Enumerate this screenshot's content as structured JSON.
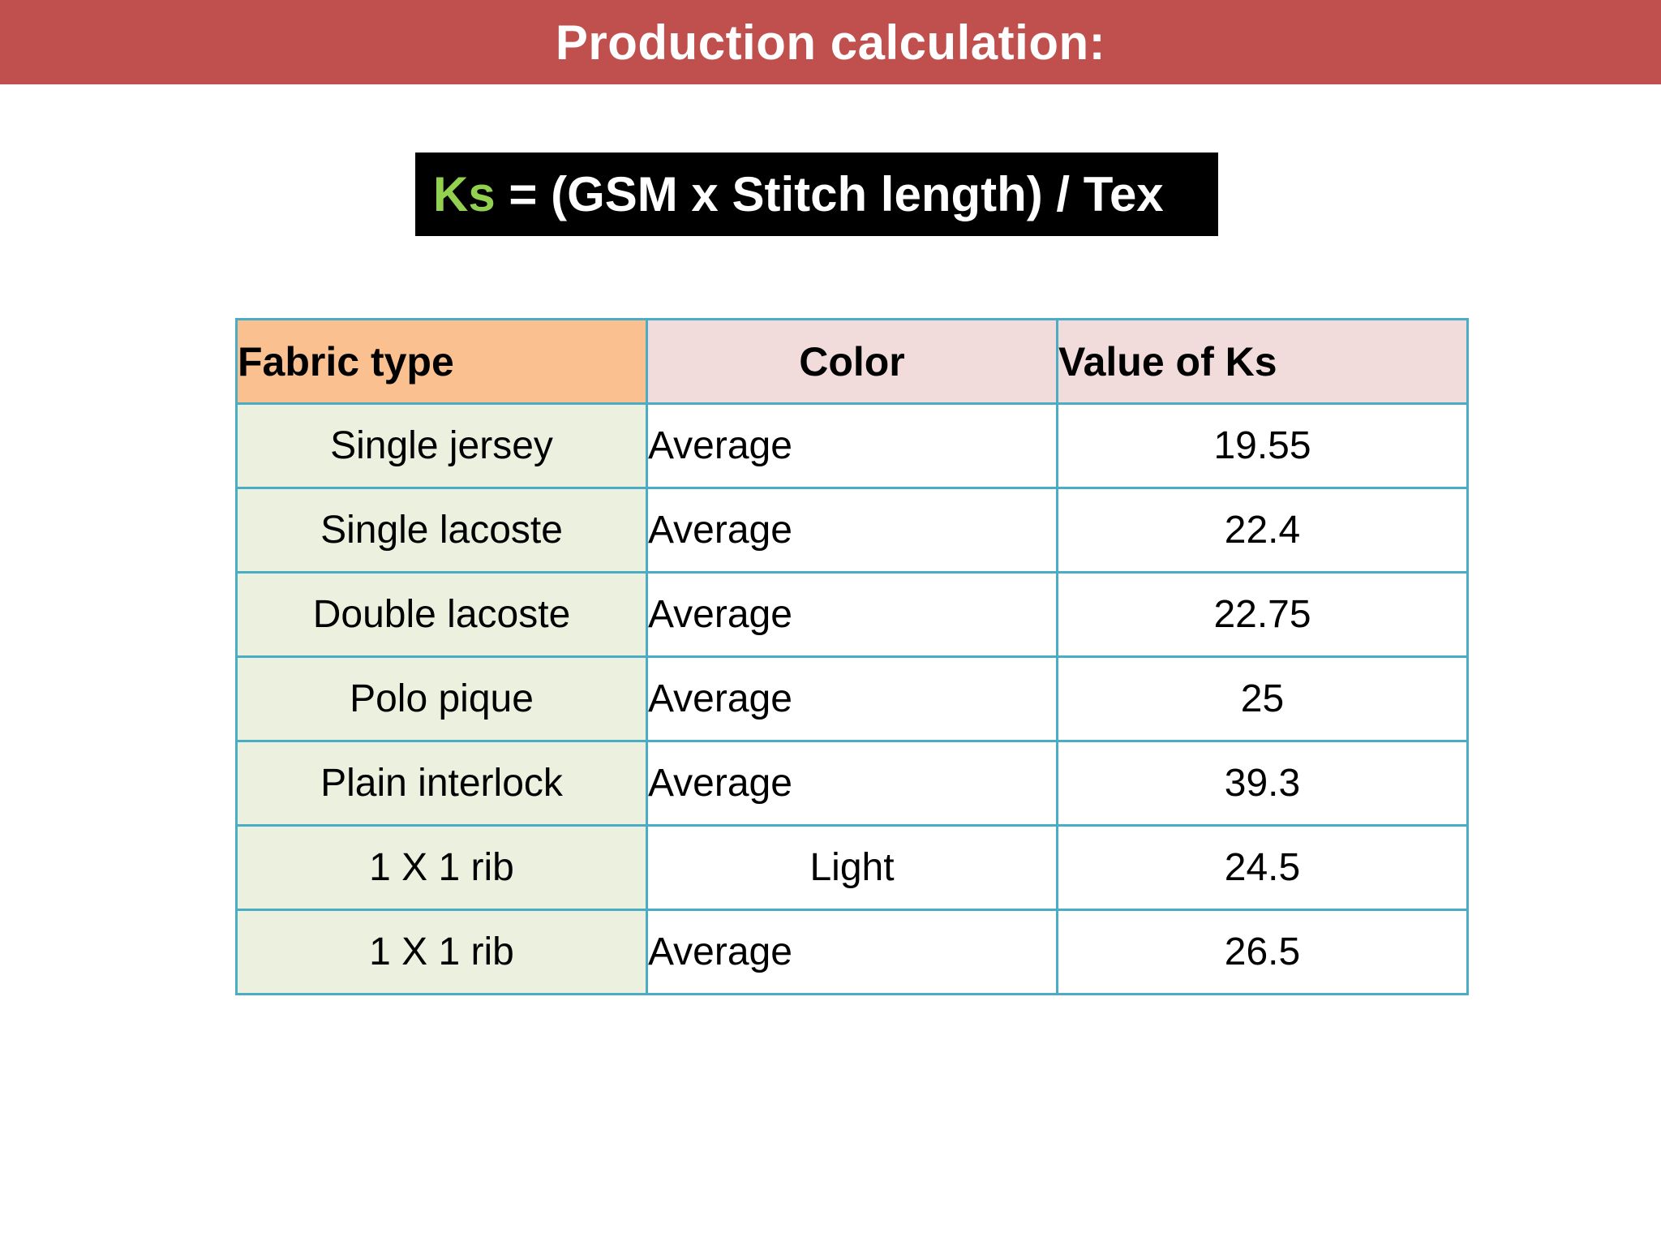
{
  "title": "Production calculation:",
  "formula": {
    "ks": "Ks",
    "rest": " = (GSM x Stitch length) / Tex",
    "colors": {
      "ks": "#92d050",
      "text": "#ffffff",
      "background": "#000000"
    }
  },
  "table": {
    "headers": {
      "fabric": "Fabric type",
      "color": "Color",
      "value": "Value of Ks"
    },
    "rows": [
      {
        "fabric": "Single jersey",
        "color": "Average",
        "value": "19.55"
      },
      {
        "fabric": "Single lacoste",
        "color": "Average",
        "value": "22.4"
      },
      {
        "fabric": "Double lacoste",
        "color": "Average",
        "value": "22.75"
      },
      {
        "fabric": "Polo pique",
        "color": "Average",
        "value": "25"
      },
      {
        "fabric": "Plain interlock",
        "color": "Average",
        "value": "39.3"
      },
      {
        "fabric": "1 X 1 rib",
        "color": "Light",
        "value": "24.5"
      },
      {
        "fabric": "1 X 1 rib",
        "color": "Average",
        "value": "26.5"
      }
    ]
  },
  "theme": {
    "title_bar": "#c0504d",
    "header_fabric": "#fac090",
    "header_other": "#f2dcdb",
    "fabric_cells": "#ebf1de",
    "border": "#4bacc6"
  }
}
